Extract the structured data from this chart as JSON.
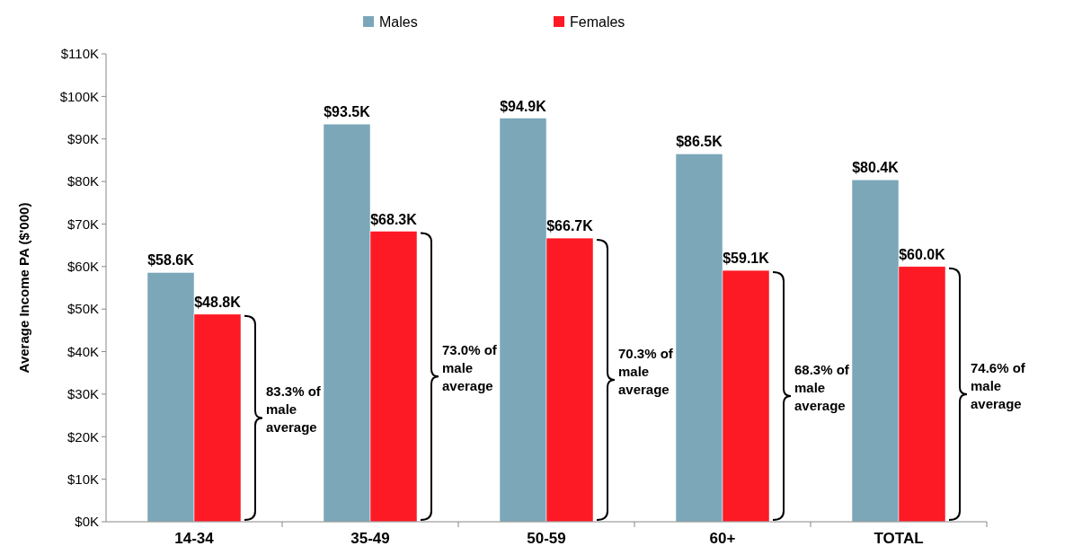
{
  "chart_data": {
    "type": "bar",
    "ylabel": "Average Income PA ($'000)",
    "categories": [
      "14-34",
      "35-49",
      "50-59",
      "60+",
      "TOTAL"
    ],
    "series": [
      {
        "name": "Males",
        "color": "#7ba7b9",
        "values": [
          58.6,
          93.5,
          94.9,
          86.5,
          80.4
        ],
        "value_labels": [
          "$58.6K",
          "$93.5K",
          "$94.9K",
          "$86.5K",
          "$80.4K"
        ]
      },
      {
        "name": "Females",
        "color": "#fe1a25",
        "values": [
          48.8,
          68.3,
          66.7,
          59.1,
          60.0
        ],
        "value_labels": [
          "$48.8K",
          "$68.3K",
          "$66.7K",
          "$59.1K",
          "$60.0K"
        ]
      }
    ],
    "ylim": [
      0,
      110
    ],
    "yticks": [
      {
        "value": 0,
        "label": "$0K"
      },
      {
        "value": 10,
        "label": "$10K"
      },
      {
        "value": 20,
        "label": "$20K"
      },
      {
        "value": 30,
        "label": "$30K"
      },
      {
        "value": 40,
        "label": "$40K"
      },
      {
        "value": 50,
        "label": "$50K"
      },
      {
        "value": 60,
        "label": "$60K"
      },
      {
        "value": 70,
        "label": "$70K"
      },
      {
        "value": 80,
        "label": "$80K"
      },
      {
        "value": 90,
        "label": "$90K"
      },
      {
        "value": 100,
        "label": "$100K"
      },
      {
        "value": 110,
        "label": "$110K"
      }
    ],
    "legend": "top",
    "grid": false,
    "annotations": [
      "83.3% of male average",
      "73.0% of male average",
      "70.3% of male average",
      "68.3% of male average",
      "74.6% of male average"
    ]
  }
}
